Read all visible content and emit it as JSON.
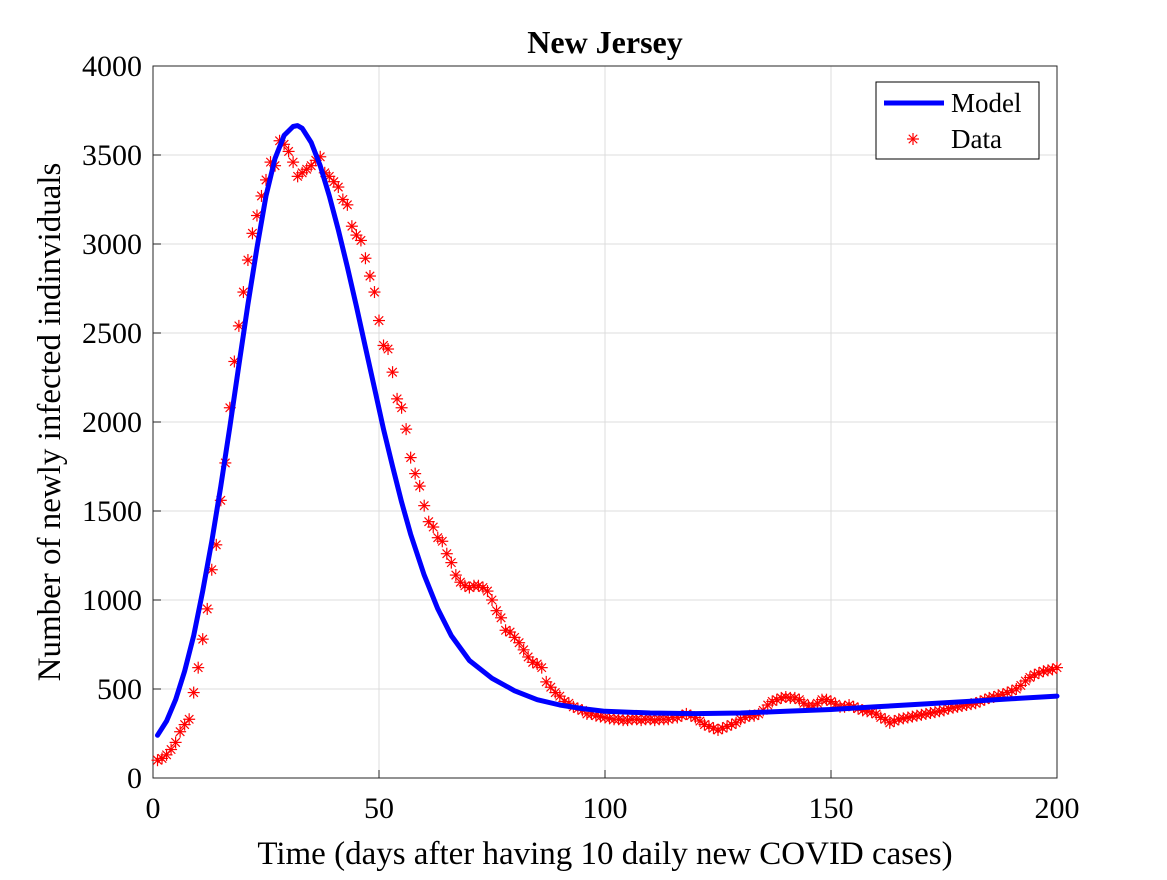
{
  "chart_data": {
    "type": "line",
    "title": "New Jersey",
    "xlabel": "Time (days after having 10 daily new COVID cases)",
    "ylabel": "Number of newly infected indinviduals",
    "xlim": [
      0,
      200
    ],
    "ylim": [
      0,
      4000
    ],
    "xticks": [
      0,
      50,
      100,
      150,
      200
    ],
    "yticks": [
      0,
      500,
      1000,
      1500,
      2000,
      2500,
      3000,
      3500,
      4000
    ],
    "grid": true,
    "legend_position": "top-right",
    "series": [
      {
        "name": "Model",
        "style": "line",
        "color": "#0000ff",
        "points": [
          [
            1,
            240
          ],
          [
            3,
            320
          ],
          [
            5,
            440
          ],
          [
            7,
            600
          ],
          [
            9,
            800
          ],
          [
            11,
            1050
          ],
          [
            13,
            1330
          ],
          [
            15,
            1640
          ],
          [
            17,
            1970
          ],
          [
            19,
            2320
          ],
          [
            21,
            2660
          ],
          [
            23,
            2980
          ],
          [
            25,
            3270
          ],
          [
            27,
            3480
          ],
          [
            29,
            3610
          ],
          [
            31,
            3660
          ],
          [
            32,
            3665
          ],
          [
            33,
            3650
          ],
          [
            35,
            3570
          ],
          [
            37,
            3440
          ],
          [
            39,
            3270
          ],
          [
            41,
            3080
          ],
          [
            43,
            2870
          ],
          [
            45,
            2650
          ],
          [
            47,
            2420
          ],
          [
            49,
            2190
          ],
          [
            51,
            1960
          ],
          [
            53,
            1750
          ],
          [
            55,
            1550
          ],
          [
            57,
            1370
          ],
          [
            60,
            1140
          ],
          [
            63,
            950
          ],
          [
            66,
            800
          ],
          [
            70,
            660
          ],
          [
            75,
            560
          ],
          [
            80,
            490
          ],
          [
            85,
            440
          ],
          [
            90,
            410
          ],
          [
            95,
            390
          ],
          [
            100,
            375
          ],
          [
            110,
            365
          ],
          [
            120,
            362
          ],
          [
            130,
            365
          ],
          [
            140,
            375
          ],
          [
            150,
            385
          ],
          [
            160,
            400
          ],
          [
            170,
            415
          ],
          [
            180,
            430
          ],
          [
            190,
            445
          ],
          [
            200,
            460
          ]
        ]
      },
      {
        "name": "Data",
        "style": "markers",
        "color": "#ff0000",
        "points": [
          [
            1,
            100
          ],
          [
            2,
            110
          ],
          [
            3,
            130
          ],
          [
            4,
            160
          ],
          [
            5,
            200
          ],
          [
            6,
            260
          ],
          [
            7,
            300
          ],
          [
            8,
            330
          ],
          [
            9,
            480
          ],
          [
            10,
            620
          ],
          [
            11,
            780
          ],
          [
            12,
            950
          ],
          [
            13,
            1170
          ],
          [
            14,
            1310
          ],
          [
            15,
            1560
          ],
          [
            16,
            1770
          ],
          [
            17,
            2080
          ],
          [
            18,
            2340
          ],
          [
            19,
            2540
          ],
          [
            20,
            2730
          ],
          [
            21,
            2910
          ],
          [
            22,
            3060
          ],
          [
            23,
            3160
          ],
          [
            24,
            3270
          ],
          [
            25,
            3360
          ],
          [
            26,
            3460
          ],
          [
            27,
            3440
          ],
          [
            28,
            3580
          ],
          [
            29,
            3560
          ],
          [
            30,
            3520
          ],
          [
            31,
            3460
          ],
          [
            32,
            3380
          ],
          [
            33,
            3400
          ],
          [
            34,
            3420
          ],
          [
            35,
            3440
          ],
          [
            36,
            3470
          ],
          [
            37,
            3490
          ],
          [
            38,
            3400
          ],
          [
            39,
            3380
          ],
          [
            40,
            3350
          ],
          [
            41,
            3320
          ],
          [
            42,
            3250
          ],
          [
            43,
            3220
          ],
          [
            44,
            3100
          ],
          [
            45,
            3050
          ],
          [
            46,
            3020
          ],
          [
            47,
            2920
          ],
          [
            48,
            2820
          ],
          [
            49,
            2730
          ],
          [
            50,
            2570
          ],
          [
            51,
            2430
          ],
          [
            52,
            2410
          ],
          [
            53,
            2280
          ],
          [
            54,
            2130
          ],
          [
            55,
            2080
          ],
          [
            56,
            1960
          ],
          [
            57,
            1800
          ],
          [
            58,
            1710
          ],
          [
            59,
            1640
          ],
          [
            60,
            1530
          ],
          [
            61,
            1440
          ],
          [
            62,
            1410
          ],
          [
            63,
            1350
          ],
          [
            64,
            1330
          ],
          [
            65,
            1260
          ],
          [
            66,
            1210
          ],
          [
            67,
            1140
          ],
          [
            68,
            1100
          ],
          [
            69,
            1080
          ],
          [
            70,
            1070
          ],
          [
            71,
            1080
          ],
          [
            72,
            1080
          ],
          [
            73,
            1070
          ],
          [
            74,
            1050
          ],
          [
            75,
            1000
          ],
          [
            76,
            940
          ],
          [
            77,
            900
          ],
          [
            78,
            830
          ],
          [
            79,
            820
          ],
          [
            80,
            790
          ],
          [
            81,
            760
          ],
          [
            82,
            720
          ],
          [
            83,
            680
          ],
          [
            84,
            650
          ],
          [
            85,
            640
          ],
          [
            86,
            620
          ],
          [
            87,
            540
          ],
          [
            88,
            510
          ],
          [
            89,
            480
          ],
          [
            90,
            460
          ],
          [
            91,
            430
          ],
          [
            92,
            420
          ],
          [
            93,
            400
          ],
          [
            94,
            390
          ],
          [
            95,
            380
          ],
          [
            96,
            360
          ],
          [
            97,
            360
          ],
          [
            98,
            350
          ],
          [
            99,
            345
          ],
          [
            100,
            340
          ],
          [
            101,
            335
          ],
          [
            102,
            330
          ],
          [
            103,
            330
          ],
          [
            104,
            325
          ],
          [
            105,
            325
          ],
          [
            106,
            330
          ],
          [
            107,
            330
          ],
          [
            108,
            325
          ],
          [
            109,
            330
          ],
          [
            110,
            330
          ],
          [
            111,
            325
          ],
          [
            112,
            330
          ],
          [
            113,
            330
          ],
          [
            114,
            330
          ],
          [
            115,
            340
          ],
          [
            116,
            340
          ],
          [
            117,
            350
          ],
          [
            118,
            360
          ],
          [
            119,
            350
          ],
          [
            120,
            340
          ],
          [
            121,
            320
          ],
          [
            122,
            300
          ],
          [
            123,
            290
          ],
          [
            124,
            280
          ],
          [
            125,
            270
          ],
          [
            126,
            280
          ],
          [
            127,
            290
          ],
          [
            128,
            300
          ],
          [
            129,
            310
          ],
          [
            130,
            330
          ],
          [
            131,
            340
          ],
          [
            132,
            350
          ],
          [
            133,
            350
          ],
          [
            134,
            360
          ],
          [
            135,
            380
          ],
          [
            136,
            410
          ],
          [
            137,
            430
          ],
          [
            138,
            440
          ],
          [
            139,
            450
          ],
          [
            140,
            455
          ],
          [
            141,
            450
          ],
          [
            142,
            450
          ],
          [
            143,
            440
          ],
          [
            144,
            420
          ],
          [
            145,
            405
          ],
          [
            146,
            405
          ],
          [
            147,
            420
          ],
          [
            148,
            440
          ],
          [
            149,
            440
          ],
          [
            150,
            430
          ],
          [
            151,
            415
          ],
          [
            152,
            400
          ],
          [
            153,
            400
          ],
          [
            154,
            410
          ],
          [
            155,
            400
          ],
          [
            156,
            390
          ],
          [
            157,
            380
          ],
          [
            158,
            375
          ],
          [
            159,
            370
          ],
          [
            160,
            360
          ],
          [
            161,
            340
          ],
          [
            162,
            330
          ],
          [
            163,
            310
          ],
          [
            164,
            320
          ],
          [
            165,
            330
          ],
          [
            166,
            335
          ],
          [
            167,
            340
          ],
          [
            168,
            345
          ],
          [
            169,
            350
          ],
          [
            170,
            355
          ],
          [
            171,
            360
          ],
          [
            172,
            365
          ],
          [
            173,
            370
          ],
          [
            174,
            375
          ],
          [
            175,
            380
          ],
          [
            176,
            390
          ],
          [
            177,
            395
          ],
          [
            178,
            400
          ],
          [
            179,
            405
          ],
          [
            180,
            410
          ],
          [
            181,
            415
          ],
          [
            182,
            420
          ],
          [
            183,
            430
          ],
          [
            184,
            440
          ],
          [
            185,
            450
          ],
          [
            186,
            455
          ],
          [
            187,
            465
          ],
          [
            188,
            470
          ],
          [
            189,
            480
          ],
          [
            190,
            490
          ],
          [
            191,
            500
          ],
          [
            192,
            520
          ],
          [
            193,
            545
          ],
          [
            194,
            565
          ],
          [
            195,
            580
          ],
          [
            196,
            590
          ],
          [
            197,
            600
          ],
          [
            198,
            605
          ],
          [
            199,
            610
          ],
          [
            200,
            620
          ]
        ]
      }
    ]
  }
}
